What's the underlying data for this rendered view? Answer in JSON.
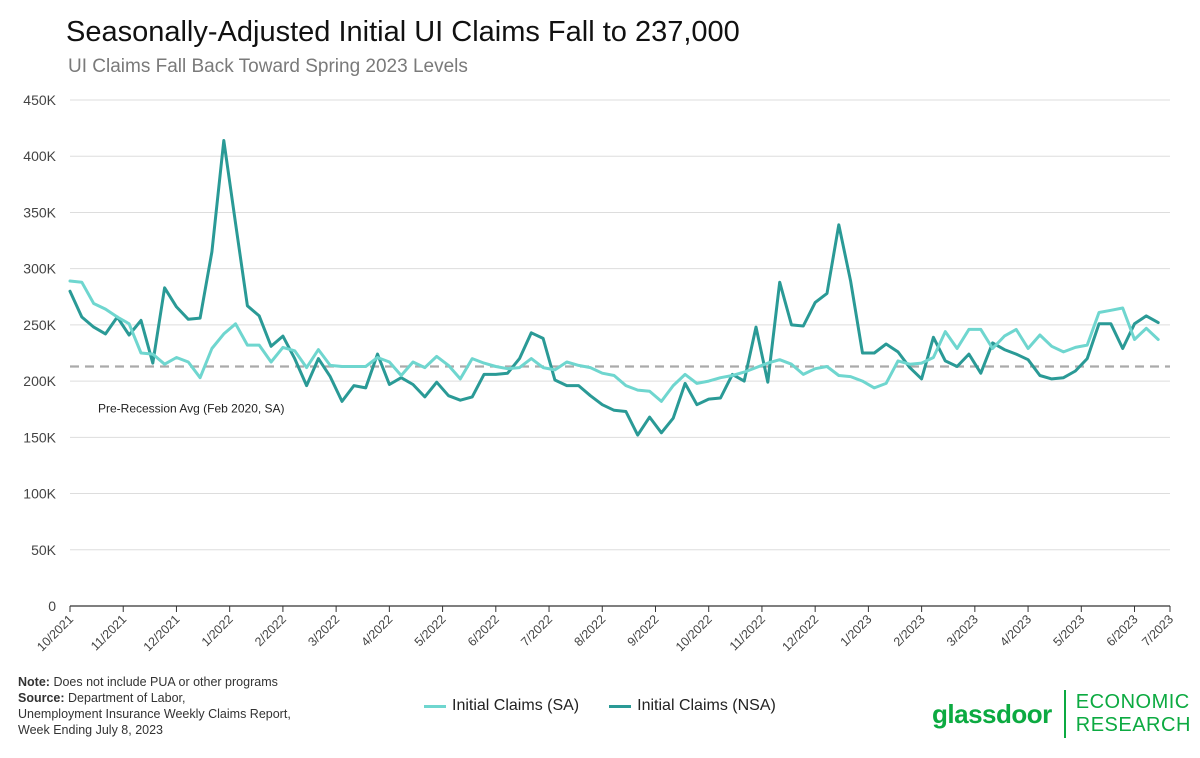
{
  "title": "Seasonally-Adjusted Initial UI Claims Fall to 237,000",
  "subtitle": "UI Claims Fall Back Toward Spring 2023 Levels",
  "note": {
    "note_label": "Note:",
    "note_text": "Does not include PUA or other programs",
    "source_label": "Source:",
    "source_line1": "Department of Labor,",
    "source_line2": "Unemployment Insurance Weekly Claims Report,",
    "source_line3": "Week Ending July 8, 2023"
  },
  "brand": {
    "logo": "glassdoor",
    "line1": "ECONOMIC",
    "line2": "RESEARCH"
  },
  "chart_data": {
    "type": "line",
    "title": "Seasonally-Adjusted Initial UI Claims Fall to 237,000",
    "subtitle": "UI Claims Fall Back Toward Spring 2023 Levels",
    "ylim": [
      0,
      450000
    ],
    "y_ticks": [
      0,
      50000,
      100000,
      150000,
      200000,
      250000,
      300000,
      350000,
      400000,
      450000
    ],
    "y_tick_labels": [
      "0",
      "50K",
      "100K",
      "150K",
      "200K",
      "250K",
      "300K",
      "350K",
      "400K",
      "450K"
    ],
    "x_tick_labels": [
      "10/2021",
      "11/2021",
      "12/2021",
      "1/2022",
      "2/2022",
      "3/2022",
      "4/2022",
      "5/2022",
      "6/2022",
      "7/2022",
      "8/2022",
      "9/2022",
      "10/2022",
      "11/2022",
      "12/2022",
      "1/2023",
      "2/2023",
      "3/2023",
      "4/2023",
      "5/2023",
      "6/2023",
      "7/2023"
    ],
    "x_range_weeks": [
      0,
      93
    ],
    "x_tick_week_positions": [
      0,
      4.5,
      9,
      13.5,
      18,
      22.5,
      27,
      31.5,
      36,
      40.5,
      45,
      49.5,
      54,
      58.5,
      63,
      67.5,
      72,
      76.5,
      81,
      85.5,
      90,
      93
    ],
    "grid": "horizontal",
    "legend": "bottom-center",
    "reference_line": {
      "label": "Pre-Recession Avg (Feb 2020, SA)",
      "value": 213000,
      "color": "#aaaaaa"
    },
    "series": [
      {
        "name": "Initial Claims (SA)",
        "color": "#6fd6cf",
        "values": [
          289000,
          288000,
          269000,
          264000,
          257000,
          251000,
          225000,
          224000,
          215000,
          221000,
          217000,
          203000,
          229000,
          242000,
          251000,
          232000,
          232000,
          217000,
          230000,
          227000,
          212000,
          228000,
          214000,
          213000,
          213000,
          213000,
          221000,
          217000,
          205000,
          217000,
          212000,
          222000,
          214000,
          202000,
          220000,
          216000,
          213000,
          211000,
          212000,
          220000,
          212000,
          210000,
          217000,
          214000,
          212000,
          207000,
          205000,
          196000,
          192000,
          191000,
          182000,
          196000,
          206000,
          198000,
          200000,
          203000,
          205000,
          208000,
          212000,
          216000,
          219000,
          215000,
          206000,
          211000,
          213000,
          205000,
          204000,
          200000,
          194000,
          198000,
          218000,
          215000,
          216000,
          221000,
          244000,
          229000,
          246000,
          246000,
          229000,
          240000,
          246000,
          229000,
          241000,
          231000,
          226000,
          230000,
          232000,
          261000,
          263000,
          265000,
          237000,
          247000,
          237000
        ]
      },
      {
        "name": "Initial Claims (NSA)",
        "color": "#2a9a96",
        "values": [
          280000,
          257000,
          248000,
          242000,
          257000,
          241000,
          254000,
          216000,
          283000,
          266000,
          255000,
          256000,
          315000,
          414000,
          340000,
          267000,
          258000,
          231000,
          240000,
          220000,
          196000,
          220000,
          204000,
          182000,
          196000,
          194000,
          224000,
          197000,
          203000,
          197000,
          186000,
          199000,
          187000,
          183000,
          186000,
          206000,
          206000,
          207000,
          220000,
          243000,
          238000,
          201000,
          196000,
          196000,
          187000,
          179000,
          174000,
          173000,
          152000,
          168000,
          154000,
          167000,
          198000,
          179000,
          184000,
          185000,
          206000,
          200000,
          248000,
          199000,
          288000,
          250000,
          249000,
          270000,
          278000,
          339000,
          289000,
          225000,
          225000,
          233000,
          226000,
          212000,
          202000,
          239000,
          218000,
          213000,
          224000,
          207000,
          234000,
          228000,
          224000,
          219000,
          205000,
          202000,
          203000,
          209000,
          220000,
          251000,
          251000,
          229000,
          251000,
          258000,
          252000
        ]
      }
    ]
  }
}
